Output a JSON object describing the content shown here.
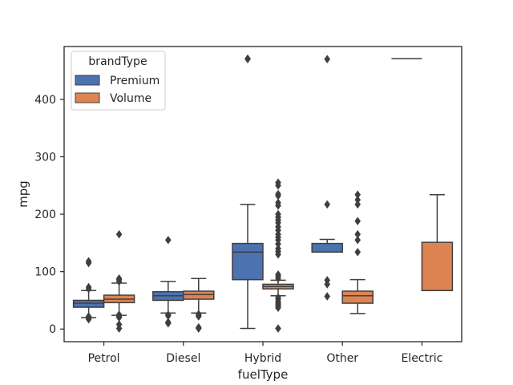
{
  "chart_data": {
    "type": "box",
    "xlabel": "fuelType",
    "ylabel": "mpg",
    "categories": [
      "Petrol",
      "Diesel",
      "Hybrid",
      "Other",
      "Electric"
    ],
    "ylim": [
      -22,
      492
    ],
    "yticks": [
      0,
      100,
      200,
      300,
      400
    ],
    "grid": false,
    "legend": {
      "title": "brandType",
      "position": "top-left"
    },
    "series": [
      {
        "name": "Premium",
        "color": "#4c72b0",
        "boxes": [
          {
            "category": "Petrol",
            "q1": 38,
            "median": 45,
            "q3": 50,
            "whisker_low": 20,
            "whisker_high": 67,
            "outliers": [
              17,
              19,
              22,
              70,
              73,
              115,
              118
            ]
          },
          {
            "category": "Diesel",
            "q1": 50,
            "median": 58,
            "q3": 65,
            "whisker_low": 28,
            "whisker_high": 83,
            "outliers": [
              10,
              12,
              23,
              25,
              155
            ]
          },
          {
            "category": "Hybrid",
            "q1": 86,
            "median": 134,
            "q3": 149,
            "whisker_low": 1,
            "whisker_high": 217,
            "outliers": [
              470,
              471
            ]
          },
          {
            "category": "Other",
            "q1": 134,
            "median": 134,
            "q3": 149,
            "whisker_low": 134,
            "whisker_high": 156,
            "outliers": [
              57,
              78,
              85,
              217,
              470
            ]
          },
          {
            "category": "Electric",
            "q1": 470.8,
            "median": 470.8,
            "q3": 470.8,
            "whisker_low": 470.8,
            "whisker_high": 470.8,
            "outliers": []
          }
        ]
      },
      {
        "name": "Volume",
        "color": "#dd8452",
        "boxes": [
          {
            "category": "Petrol",
            "q1": 46,
            "median": 52,
            "q3": 59,
            "whisker_low": 24,
            "whisker_high": 80,
            "outliers": [
              1,
              8,
              20,
              22,
              25,
              83,
              86,
              88,
              165
            ]
          },
          {
            "category": "Diesel",
            "q1": 52,
            "median": 60,
            "q3": 66,
            "whisker_low": 28,
            "whisker_high": 88,
            "outliers": [
              1,
              3,
              22,
              24,
              26
            ]
          },
          {
            "category": "Hybrid",
            "q1": 70,
            "median": 74,
            "q3": 78,
            "whisker_low": 58,
            "whisker_high": 85,
            "outliers": [
              1,
              37,
              40,
              42,
              45,
              48,
              52,
              55,
              88,
              92,
              95,
              130,
              135,
              140,
              148,
              155,
              160,
              165,
              172,
              178,
              185,
              190,
              195,
              200,
              215,
              220,
              232,
              235,
              250,
              255
            ]
          },
          {
            "category": "Other",
            "q1": 45,
            "median": 58,
            "q3": 66,
            "whisker_low": 27,
            "whisker_high": 86,
            "outliers": [
              134,
              155,
              165,
              188,
              217,
              225,
              234
            ]
          },
          {
            "category": "Electric",
            "q1": 67,
            "median": 67,
            "q3": 151,
            "whisker_low": 67,
            "whisker_high": 234,
            "outliers": []
          }
        ]
      }
    ]
  }
}
